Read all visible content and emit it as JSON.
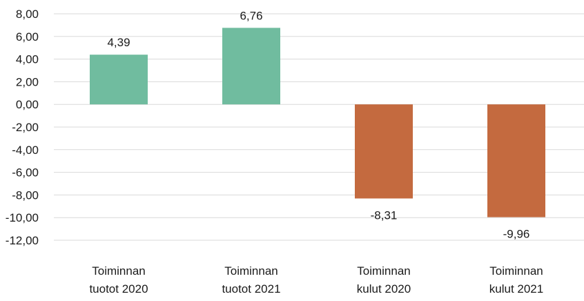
{
  "chart_data": {
    "type": "bar",
    "categories": [
      [
        "Toiminnan",
        "tuotot 2020"
      ],
      [
        "Toiminnan",
        "tuotot 2021"
      ],
      [
        "Toiminnan",
        "kulut 2020"
      ],
      [
        "Toiminnan",
        "kulut 2021"
      ]
    ],
    "values": [
      4.39,
      6.76,
      -8.31,
      -9.96
    ],
    "data_labels": [
      "4,39",
      "6,76",
      "-8,31",
      "-9,96"
    ],
    "bar_colors": [
      "#70bc9f",
      "#70bc9f",
      "#c46a3f",
      "#c46a3f"
    ],
    "y_ticks": [
      "8,00",
      "6,00",
      "4,00",
      "2,00",
      "0,00",
      "-2,00",
      "-4,00",
      "-6,00",
      "-8,00",
      "-10,00",
      "-12,00"
    ],
    "ylim": [
      -12,
      8
    ],
    "grid": true,
    "title": "",
    "xlabel": "",
    "ylabel": ""
  }
}
